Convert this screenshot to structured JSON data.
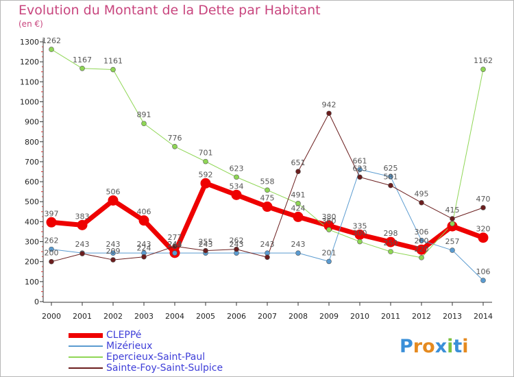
{
  "title": "Evolution du Montant de la Dette par Habitant",
  "subtitle": "(en €)",
  "logo": {
    "text": "Proxiti",
    "colors": [
      "#3a8fd8",
      "#e58a1f",
      "#e58a1f",
      "#3a8fd8",
      "#7cc242",
      "#3a8fd8",
      "#e58a1f"
    ]
  },
  "chart_data": {
    "type": "line",
    "title": "Evolution du Montant de la Dette par Habitant",
    "subtitle": "(en €)",
    "x": [
      "2000",
      "2001",
      "2002",
      "2003",
      "2004",
      "2005",
      "2006",
      "2007",
      "2008",
      "2009",
      "2010",
      "2011",
      "2012",
      "2013",
      "2014"
    ],
    "ylim": [
      0,
      1300
    ],
    "yticks": [
      0,
      100,
      200,
      300,
      400,
      500,
      600,
      700,
      800,
      900,
      1000,
      1100,
      1200,
      1300
    ],
    "grid": false,
    "legend_position": "bottom-left",
    "series": [
      {
        "name": "CLEPPé",
        "color": "#ee0000",
        "stroke_width": 7,
        "marker_size": 7,
        "values": [
          397,
          383,
          506,
          406,
          244,
          592,
          534,
          475,
          424,
          380,
          335,
          298,
          260,
          377,
          320
        ],
        "labels": [
          "397",
          "383",
          "506",
          "406",
          "244",
          "592",
          "534",
          "475",
          "424",
          "380",
          "335",
          "298",
          "260",
          "",
          "320"
        ]
      },
      {
        "name": "Mizérieux",
        "color": "#5a9bd0",
        "stroke_width": 1,
        "marker_size": 3.5,
        "values": [
          262,
          243,
          243,
          243,
          243,
          243,
          243,
          243,
          243,
          201,
          661,
          625,
          306,
          257,
          106
        ],
        "labels": [
          "262",
          "243",
          "243",
          "243",
          "243",
          "243",
          "243",
          "243",
          "243",
          "201",
          "661",
          "625",
          "306",
          "257",
          "106"
        ]
      },
      {
        "name": "Epercieux-Saint-Paul",
        "color": "#8fd655",
        "stroke_width": 1,
        "marker_size": 3.5,
        "values": [
          1262,
          1167,
          1161,
          891,
          776,
          701,
          623,
          558,
          491,
          360,
          300,
          250,
          220,
          390,
          1162
        ],
        "labels": [
          "1262",
          "1167",
          "1161",
          "891",
          "776",
          "701",
          "623",
          "558",
          "491",
          "360",
          "300",
          "250",
          "220",
          "",
          "1162"
        ]
      },
      {
        "name": "Sainte-Foy-Saint-Sulpice",
        "color": "#6b1e1e",
        "stroke_width": 1,
        "marker_size": 3.5,
        "values": [
          200,
          240,
          209,
          224,
          277,
          255,
          262,
          222,
          651,
          942,
          623,
          581,
          495,
          415,
          470
        ],
        "labels": [
          "200",
          "",
          "209",
          "224",
          "277",
          "255",
          "262",
          "",
          "651",
          "942",
          "623",
          "581",
          "495",
          "415",
          "470"
        ]
      }
    ]
  }
}
